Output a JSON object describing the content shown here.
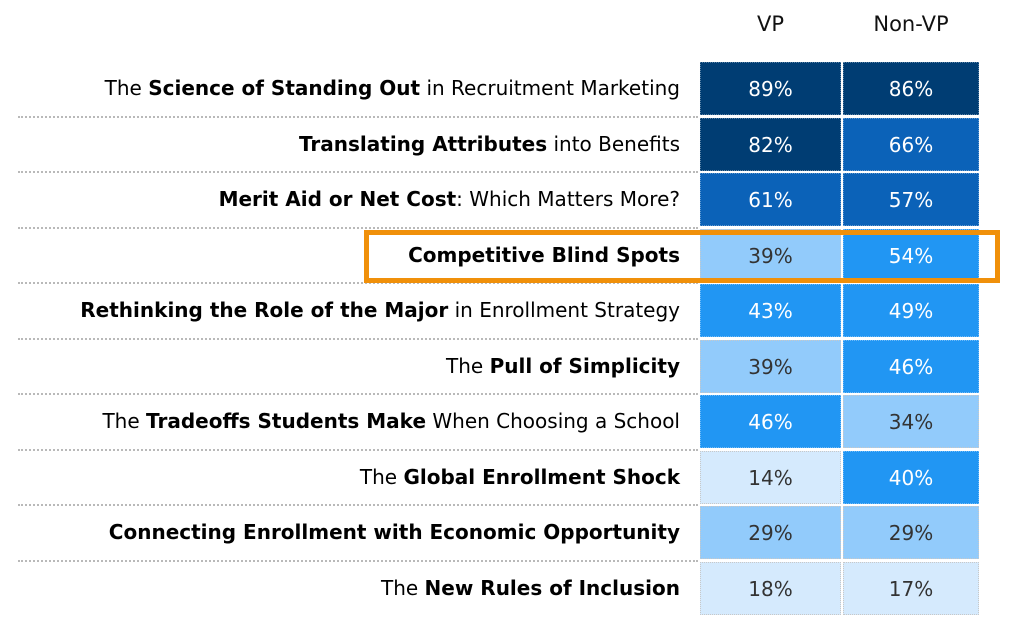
{
  "chart_data": {
    "type": "table",
    "columns": [
      "VP",
      "Non-VP"
    ],
    "rows": [
      {
        "label_parts": [
          {
            "text": "The ",
            "bold": false
          },
          {
            "text": "Science of Standing Out",
            "bold": true
          },
          {
            "text": " in Recruitment Marketing",
            "bold": false
          }
        ],
        "values": [
          "89%",
          "86%"
        ],
        "numeric": [
          89,
          86
        ]
      },
      {
        "label_parts": [
          {
            "text": "Translating Attributes",
            "bold": true
          },
          {
            "text": " into Benefits",
            "bold": false
          }
        ],
        "values": [
          "82%",
          "66%"
        ],
        "numeric": [
          82,
          66
        ]
      },
      {
        "label_parts": [
          {
            "text": "Merit Aid or Net Cost",
            "bold": true
          },
          {
            "text": ": Which Matters More?",
            "bold": false
          }
        ],
        "values": [
          "61%",
          "57%"
        ],
        "numeric": [
          61,
          57
        ]
      },
      {
        "label_parts": [
          {
            "text": "Competitive Blind Spots",
            "bold": true
          }
        ],
        "values": [
          "39%",
          "54%"
        ],
        "numeric": [
          39,
          54
        ],
        "highlighted": true
      },
      {
        "label_parts": [
          {
            "text": "Rethinking the Role of the Major",
            "bold": true
          },
          {
            "text": " in Enrollment Strategy",
            "bold": false
          }
        ],
        "values": [
          "43%",
          "49%"
        ],
        "numeric": [
          43,
          49
        ]
      },
      {
        "label_parts": [
          {
            "text": "The ",
            "bold": false
          },
          {
            "text": "Pull of Simplicity",
            "bold": true
          }
        ],
        "values": [
          "39%",
          "46%"
        ],
        "numeric": [
          39,
          46
        ]
      },
      {
        "label_parts": [
          {
            "text": "The ",
            "bold": false
          },
          {
            "text": "Tradeoffs Students Make",
            "bold": true
          },
          {
            "text": " When Choosing a School",
            "bold": false
          }
        ],
        "values": [
          "46%",
          "34%"
        ],
        "numeric": [
          46,
          34
        ]
      },
      {
        "label_parts": [
          {
            "text": "The ",
            "bold": false
          },
          {
            "text": "Global Enrollment Shock",
            "bold": true
          }
        ],
        "values": [
          "14%",
          "40%"
        ],
        "numeric": [
          14,
          40
        ]
      },
      {
        "label_parts": [
          {
            "text": "Connecting Enrollment with Economic Opportunity",
            "bold": true
          }
        ],
        "values": [
          "29%",
          "29%"
        ],
        "numeric": [
          29,
          29
        ]
      },
      {
        "label_parts": [
          {
            "text": "The ",
            "bold": false
          },
          {
            "text": "New Rules of Inclusion",
            "bold": true
          }
        ],
        "values": [
          "18%",
          "17%"
        ],
        "numeric": [
          18,
          17
        ]
      }
    ],
    "color_scale": [
      {
        "min": 70,
        "bg": "#003d73",
        "fg": "#ffffff"
      },
      {
        "min": 55,
        "bg": "#0b62b8",
        "fg": "#ffffff"
      },
      {
        "min": 40,
        "bg": "#2196f3",
        "fg": "#ffffff"
      },
      {
        "min": 25,
        "bg": "#92cbfb",
        "fg": "#333333"
      },
      {
        "min": 0,
        "bg": "#d5eafd",
        "fg": "#333333"
      }
    ],
    "highlight_color": "#f0900a"
  }
}
